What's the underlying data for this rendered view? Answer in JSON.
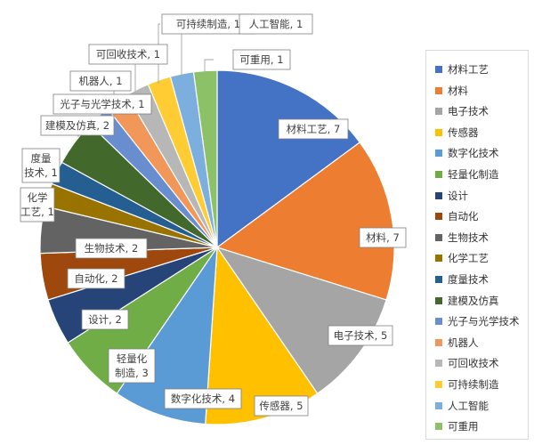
{
  "chart_data": {
    "type": "pie",
    "title": "",
    "legend_position": "right",
    "slices": [
      {
        "label": "材料工艺",
        "value": 7,
        "color": "#4472C4",
        "data_label": "材料工艺, 7"
      },
      {
        "label": "材料",
        "value": 7,
        "color": "#ED7D31",
        "data_label": "材料, 7"
      },
      {
        "label": "电子技术",
        "value": 5,
        "color": "#A5A5A5",
        "data_label": "电子技术, 5"
      },
      {
        "label": "传感器",
        "value": 5,
        "color": "#FFC000",
        "data_label": "传感器, 5"
      },
      {
        "label": "数字化技术",
        "value": 4,
        "color": "#5B9BD5",
        "data_label": "数字化技术, 4"
      },
      {
        "label": "轻量化制造",
        "value": 3,
        "color": "#70AD47",
        "data_label": "轻量化制造, 3"
      },
      {
        "label": "设计",
        "value": 2,
        "color": "#264478",
        "data_label": "设计, 2"
      },
      {
        "label": "自动化",
        "value": 2,
        "color": "#9E480E",
        "data_label": "自动化, 2"
      },
      {
        "label": "生物技术",
        "value": 2,
        "color": "#636363",
        "data_label": "生物技术, 2"
      },
      {
        "label": "化学工艺",
        "value": 1,
        "color": "#997300",
        "data_label": "化学工艺, 1"
      },
      {
        "label": "度量技术",
        "value": 1,
        "color": "#255E91",
        "data_label": "度量技术, 1"
      },
      {
        "label": "建模及仿真",
        "value": 2,
        "color": "#43682B",
        "data_label": "建模及仿真, 2"
      },
      {
        "label": "光子与光学技术",
        "value": 1,
        "color": "#698ED0",
        "data_label": "光子与光学技术, 1"
      },
      {
        "label": "机器人",
        "value": 1,
        "color": "#F1975A",
        "data_label": "机器人, 1"
      },
      {
        "label": "可回收技术",
        "value": 1,
        "color": "#B7B7B7",
        "data_label": "可回收技术, 1"
      },
      {
        "label": "可持续制造",
        "value": 1,
        "color": "#FFCD33",
        "data_label": "可持续制造, 1"
      },
      {
        "label": "人工智能",
        "value": 1,
        "color": "#7CAFDD",
        "data_label": "人工智能, 1"
      },
      {
        "label": "可重用",
        "value": 1,
        "color": "#8CC168",
        "data_label": "可重用, 1"
      }
    ]
  }
}
